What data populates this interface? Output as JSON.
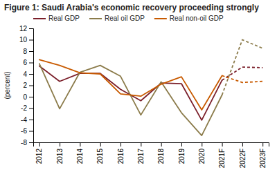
{
  "chart_data": {
    "type": "line",
    "title": "Figure 1: Saudi Arabia's economic recovery proceeding strongly",
    "y_label": "(percent)",
    "categories": [
      "2012",
      "2013",
      "2014",
      "2015",
      "2016",
      "2017",
      "2018",
      "2019",
      "2020",
      "2021F",
      "2022F",
      "2023F"
    ],
    "series": [
      {
        "name": "Real GDP",
        "color": "#7b1f2a",
        "line_style": "solid",
        "values": [
          5.4,
          2.7,
          4.1,
          4.1,
          1.3,
          -0.7,
          2.4,
          2.3,
          -4.1,
          2.9,
          null,
          null
        ]
      },
      {
        "color": "#7b1f2a",
        "line_style": "dashed",
        "values": [
          null,
          null,
          null,
          null,
          null,
          null,
          null,
          null,
          null,
          2.9,
          5.2,
          5.1
        ]
      },
      {
        "name": "Real oil GDP",
        "color": "#8b7b4a",
        "line_style": "solid",
        "values": [
          5.8,
          -2.1,
          4.3,
          5.5,
          3.6,
          -3.2,
          2.6,
          -2.8,
          -6.8,
          0.3,
          null,
          null
        ]
      },
      {
        "color": "#8b7b4a",
        "line_style": "dashed",
        "values": [
          null,
          null,
          null,
          null,
          null,
          null,
          null,
          null,
          null,
          0.3,
          10.0,
          8.5
        ]
      },
      {
        "name": "Real non-oil GDP",
        "color": "#c85a00",
        "line_style": "solid",
        "values": [
          6.5,
          5.5,
          4.2,
          4.0,
          0.5,
          0.1,
          2.2,
          3.5,
          -2.3,
          3.7,
          null,
          null
        ]
      },
      {
        "color": "#c85a00",
        "line_style": "dashed",
        "values": [
          null,
          null,
          null,
          null,
          null,
          null,
          null,
          null,
          null,
          3.7,
          2.5,
          2.7
        ]
      }
    ],
    "ylim": [
      -8,
      12
    ],
    "yticks": [
      -8,
      -6,
      -4,
      -2,
      0,
      2,
      4,
      6,
      8,
      10,
      12
    ],
    "grid": false,
    "legend": "top"
  }
}
